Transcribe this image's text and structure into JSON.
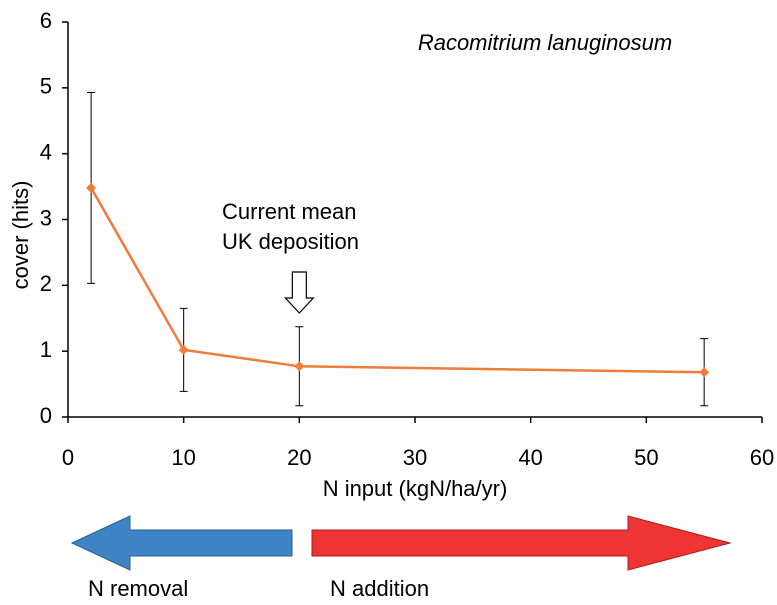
{
  "chart_data": {
    "type": "line",
    "species_label": "Racomitrium lanuginosum",
    "x_label": "N input (kgN/ha/yr)",
    "y_label": "cover (hits)",
    "x": [
      2,
      10,
      20,
      55
    ],
    "values": [
      3.48,
      1.02,
      0.77,
      0.68
    ],
    "errors": [
      1.45,
      0.63,
      0.6,
      0.51
    ],
    "color": "#f07c3a",
    "xlim": [
      0,
      60
    ],
    "xticks": [
      0,
      10,
      20,
      30,
      40,
      50,
      60
    ],
    "ylim": [
      0,
      6
    ],
    "yticks": [
      0,
      1,
      2,
      3,
      4,
      5,
      6
    ],
    "annotation": [
      "Current mean",
      "UK deposition"
    ],
    "annotation_x": 20,
    "left_arrow_label": "N removal",
    "right_arrow_label": "N addition"
  }
}
